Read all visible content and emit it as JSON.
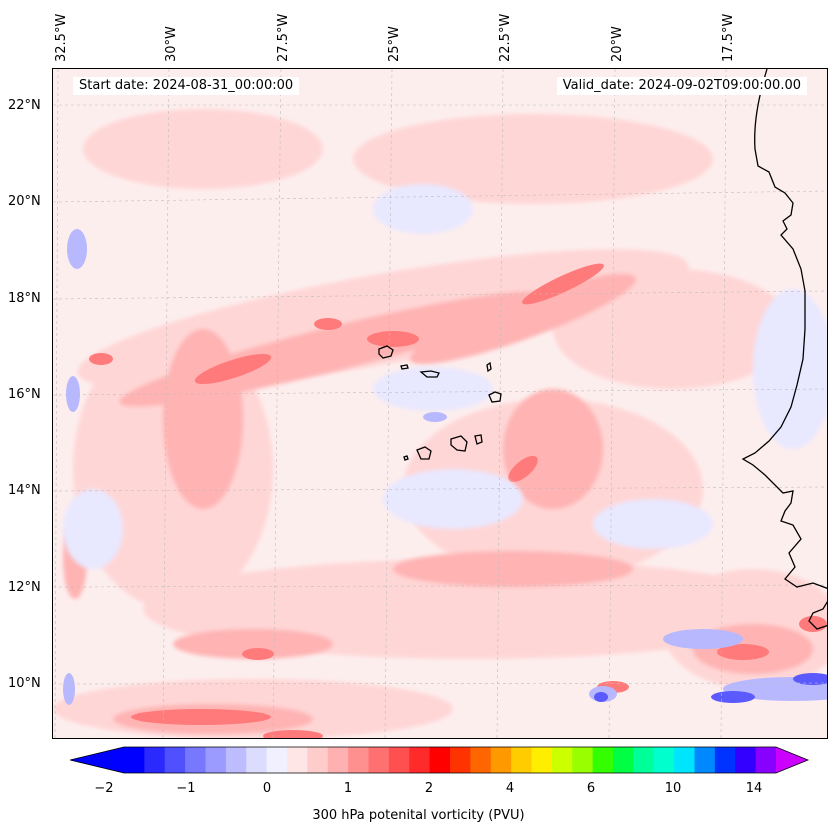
{
  "header": {
    "start_date": "Start date: 2024-08-31_00:00:00",
    "valid_date": "Valid_date: 2024-09-02T09:00:00.00"
  },
  "axes": {
    "lon_labels": [
      "32.5°W",
      "30°W",
      "27.5°W",
      "25°W",
      "22.5°W",
      "20°W",
      "17.5°W"
    ],
    "lat_labels": [
      "22°N",
      "20°N",
      "18°N",
      "16°N",
      "14°N",
      "12°N",
      "10°N"
    ],
    "lon_range": [
      -33,
      -15.5
    ],
    "lat_range": [
      8.8,
      22.8
    ]
  },
  "colorbar": {
    "label": "300 hPa potenital vorticity (PVU)",
    "ticks": [
      "−2",
      "−1",
      "0",
      "1",
      "2",
      "4",
      "6",
      "10",
      "14"
    ],
    "colors": [
      "#0000ff",
      "#2a2aff",
      "#5050ff",
      "#7878ff",
      "#9a9aff",
      "#bcbcff",
      "#dcdcff",
      "#f0f0ff",
      "#ffe6e6",
      "#ffcccc",
      "#ffb0b0",
      "#ff9090",
      "#ff7070",
      "#ff5050",
      "#ff2a2a",
      "#ff0000",
      "#ff3300",
      "#ff6600",
      "#ff9900",
      "#ffcc00",
      "#ffee00",
      "#ccff00",
      "#99ff00",
      "#33ff00",
      "#00ff44",
      "#00ff99",
      "#00ffcc",
      "#00e5ff",
      "#0088ff",
      "#0033ff",
      "#3300ff",
      "#8800ff"
    ],
    "under_color": "#0000ff",
    "over_color": "#cc00ff"
  },
  "field_colors": {
    "background": "#fdeeee",
    "light_pink": "#ffd6d6",
    "pink": "#ffb3b3",
    "red": "#ff7a7a",
    "strong_red": "#ff4d4d",
    "light_blue": "#e8e8ff",
    "blue": "#b8b8ff",
    "deep_blue": "#5a5aff"
  }
}
